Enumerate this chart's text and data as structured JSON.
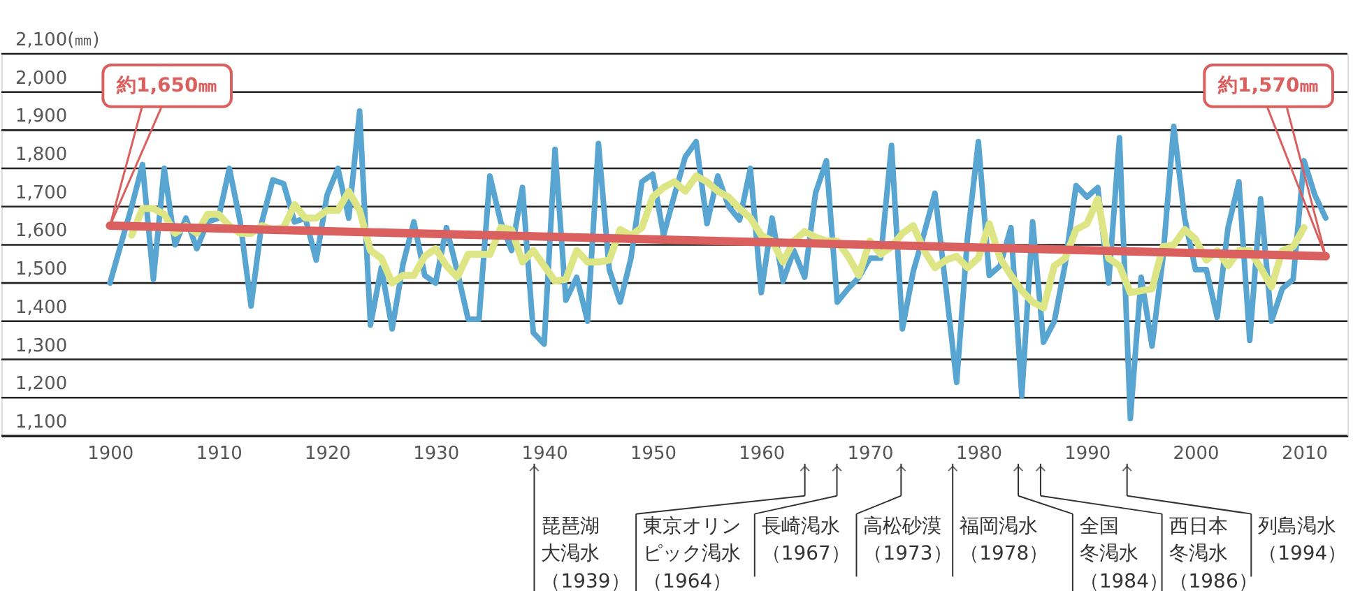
{
  "chart_data": {
    "type": "line",
    "xlim": [
      1890,
      2014
    ],
    "xticks": [
      1900,
      1910,
      1920,
      1930,
      1940,
      1950,
      1960,
      1970,
      1980,
      1990,
      2000,
      2010
    ],
    "ylim": [
      1100,
      2100
    ],
    "yticks": [
      {
        "value": 1100,
        "label": "1,100"
      },
      {
        "value": 1200,
        "label": "1,200"
      },
      {
        "value": 1300,
        "label": "1,300"
      },
      {
        "value": 1400,
        "label": "1,400"
      },
      {
        "value": 1500,
        "label": "1,500"
      },
      {
        "value": 1600,
        "label": "1,600"
      },
      {
        "value": 1700,
        "label": "1,700"
      },
      {
        "value": 1800,
        "label": "1,800"
      },
      {
        "value": 1900,
        "label": "1,900"
      },
      {
        "value": 2000,
        "label": "2,000"
      },
      {
        "value": 2100,
        "label": "2,100(㎜)"
      }
    ],
    "grid": "y",
    "marker": "none",
    "line_style": "solid",
    "series": [
      {
        "color": "#57a5d0",
        "x": [
          1900,
          1901,
          1902,
          1903,
          1904,
          1905,
          1906,
          1907,
          1908,
          1909,
          1910,
          1911,
          1912,
          1913,
          1914,
          1915,
          1916,
          1917,
          1918,
          1919,
          1920,
          1921,
          1922,
          1923,
          1924,
          1925,
          1926,
          1927,
          1928,
          1929,
          1930,
          1931,
          1932,
          1933,
          1934,
          1935,
          1936,
          1937,
          1938,
          1939,
          1940,
          1941,
          1942,
          1943,
          1944,
          1945,
          1946,
          1947,
          1948,
          1949,
          1950,
          1951,
          1952,
          1953,
          1954,
          1955,
          1956,
          1957,
          1958,
          1959,
          1960,
          1961,
          1962,
          1963,
          1964,
          1965,
          1966,
          1967,
          1968,
          1969,
          1970,
          1971,
          1972,
          1973,
          1974,
          1975,
          1976,
          1977,
          1978,
          1979,
          1980,
          1981,
          1982,
          1983,
          1984,
          1985,
          1986,
          1987,
          1988,
          1989,
          1990,
          1991,
          1992,
          1993,
          1994,
          1995,
          1996,
          1997,
          1998,
          1999,
          2000,
          2001,
          2002,
          2003,
          2004,
          2005,
          2006,
          2007,
          2008,
          2009,
          2010,
          2011,
          2012
        ],
        "values": [
          1500,
          1600,
          1700,
          1810,
          1510,
          1800,
          1600,
          1670,
          1590,
          1660,
          1670,
          1800,
          1660,
          1440,
          1660,
          1770,
          1760,
          1660,
          1670,
          1560,
          1730,
          1800,
          1670,
          1950,
          1390,
          1540,
          1380,
          1550,
          1660,
          1520,
          1500,
          1645,
          1530,
          1405,
          1405,
          1780,
          1660,
          1585,
          1750,
          1370,
          1340,
          1850,
          1455,
          1515,
          1400,
          1865,
          1535,
          1450,
          1565,
          1765,
          1785,
          1625,
          1730,
          1830,
          1870,
          1655,
          1780,
          1700,
          1665,
          1800,
          1475,
          1670,
          1505,
          1585,
          1515,
          1735,
          1820,
          1450,
          1485,
          1515,
          1565,
          1565,
          1860,
          1380,
          1530,
          1630,
          1735,
          1490,
          1240,
          1620,
          1870,
          1520,
          1545,
          1645,
          1205,
          1660,
          1345,
          1400,
          1550,
          1755,
          1725,
          1750,
          1500,
          1880,
          1145,
          1515,
          1335,
          1565,
          1910,
          1670,
          1535,
          1535,
          1410,
          1645,
          1765,
          1350,
          1720,
          1400,
          1485,
          1510,
          1820,
          1730,
          1670
        ]
      },
      {
        "color": "#dde585",
        "x": [
          1902,
          1903,
          1904,
          1905,
          1906,
          1907,
          1908,
          1909,
          1910,
          1911,
          1912,
          1913,
          1914,
          1915,
          1916,
          1917,
          1918,
          1919,
          1920,
          1921,
          1922,
          1923,
          1924,
          1925,
          1926,
          1927,
          1928,
          1929,
          1930,
          1931,
          1932,
          1933,
          1934,
          1935,
          1936,
          1937,
          1938,
          1939,
          1940,
          1941,
          1942,
          1943,
          1944,
          1945,
          1946,
          1947,
          1948,
          1949,
          1950,
          1951,
          1952,
          1953,
          1954,
          1955,
          1956,
          1957,
          1958,
          1959,
          1960,
          1961,
          1962,
          1963,
          1964,
          1965,
          1966,
          1967,
          1968,
          1969,
          1970,
          1971,
          1972,
          1973,
          1974,
          1975,
          1976,
          1977,
          1978,
          1979,
          1980,
          1981,
          1982,
          1983,
          1984,
          1985,
          1986,
          1987,
          1988,
          1989,
          1990,
          1991,
          1992,
          1993,
          1994,
          1995,
          1996,
          1997,
          1998,
          1999,
          2000,
          2001,
          2002,
          2003,
          2004,
          2005,
          2006,
          2007,
          2008,
          2009,
          2010
        ],
        "values": [
          1625,
          1695,
          1695,
          1680,
          1630,
          1650,
          1630,
          1680,
          1680,
          1650,
          1630,
          1630,
          1650,
          1640,
          1645,
          1705,
          1670,
          1670,
          1690,
          1690,
          1740,
          1690,
          1585,
          1565,
          1500,
          1520,
          1520,
          1570,
          1590,
          1545,
          1515,
          1575,
          1575,
          1575,
          1645,
          1640,
          1555,
          1585,
          1545,
          1505,
          1510,
          1585,
          1555,
          1555,
          1560,
          1640,
          1625,
          1645,
          1725,
          1750,
          1765,
          1740,
          1780,
          1765,
          1740,
          1725,
          1695,
          1670,
          1625,
          1610,
          1555,
          1610,
          1635,
          1620,
          1610,
          1610,
          1570,
          1520,
          1610,
          1575,
          1595,
          1630,
          1650,
          1585,
          1540,
          1560,
          1570,
          1540,
          1565,
          1655,
          1565,
          1520,
          1480,
          1450,
          1435,
          1545,
          1565,
          1640,
          1655,
          1720,
          1565,
          1545,
          1475,
          1480,
          1485,
          1595,
          1600,
          1640,
          1615,
          1560,
          1585,
          1545,
          1585,
          1585,
          1540,
          1490,
          1585,
          1595,
          1645
        ]
      },
      {
        "color": "#d9605e",
        "x": [
          1900,
          2012
        ],
        "values": [
          1650,
          1570
        ]
      }
    ],
    "annotations": [
      {
        "text": "約1,650㎜",
        "x": 1900,
        "y": 1650
      },
      {
        "text": "約1,570㎜",
        "x": 2012,
        "y": 1570
      },
      "琵琶湖大渇水（1939）",
      "東京オリンピック渇水（1964）",
      "長崎渇水（1967）",
      "高松砂漠（1973）",
      "福岡渇水（1978）",
      "全国冬渇水（1984）",
      "西日本冬渇水（1986）",
      "列島渇水（1994）"
    ]
  }
}
